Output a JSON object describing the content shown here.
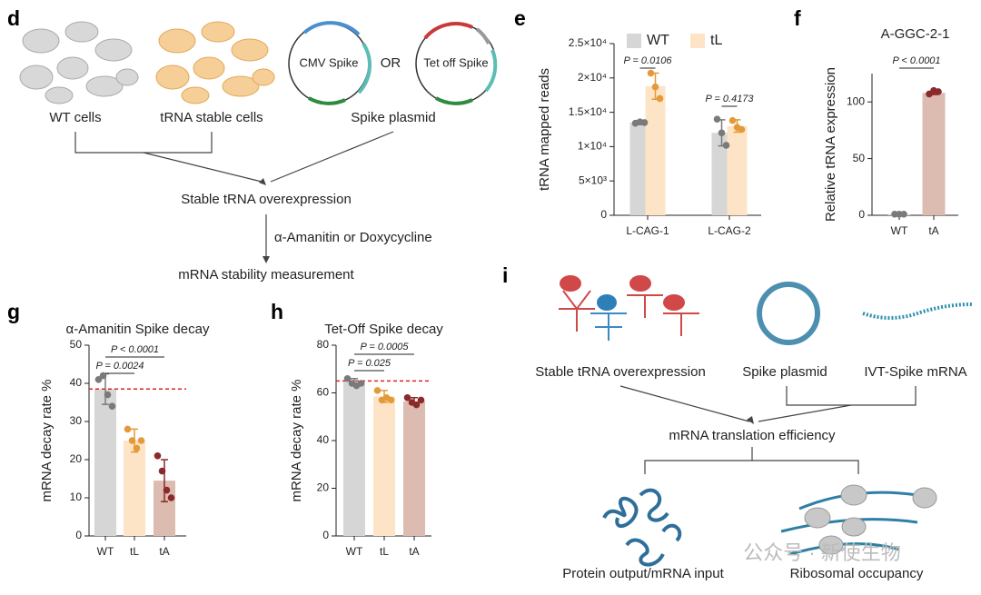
{
  "panel_letters": [
    "d",
    "e",
    "f",
    "g",
    "h",
    "i"
  ],
  "diagram_d": {
    "wt_cells": "WT cells",
    "stable_cells": "tRNA stable cells",
    "plasmid_1": "CMV Spike",
    "or": "OR",
    "plasmid_2": "Tet off Spike",
    "plasmid_label": "Spike plasmid",
    "step_1": "Stable tRNA overexpression",
    "treatment": "α-Amanitin or Doxycycline",
    "step_2": "mRNA stability measurement"
  },
  "diagram_i": {
    "trna": "Stable tRNA overexpression",
    "plasmid": "Spike plasmid",
    "ivt": "IVT-Spike mRNA",
    "measure": "mRNA translation efficiency",
    "protein": "Protein output/mRNA input",
    "ribosome": "Ribosomal occupancy"
  },
  "watermark": "公众号 · 新使生物",
  "chart_data": [
    {
      "type": "bar",
      "ylabel": "tRNA mapped reads",
      "categories": [
        "L-CAG-1",
        "L-CAG-2"
      ],
      "series": [
        {
          "name": "WT",
          "color": "#d6d6d6",
          "point_color": "#7a7a7a",
          "values": [
            13500,
            12000
          ],
          "errors": [
            300,
            1900
          ],
          "points": [
            [
              13400,
              13600,
              13500
            ],
            [
              14000,
              12000,
              10200
            ]
          ]
        },
        {
          "name": "tL",
          "color": "#fde4c6",
          "point_color": "#e59a3a",
          "values": [
            18800,
            13000
          ],
          "errors": [
            1900,
            900
          ],
          "points": [
            [
              20700,
              18700,
              17000
            ],
            [
              13800,
              12800,
              12500
            ]
          ]
        }
      ],
      "ylim": [
        0,
        25000
      ],
      "yticks": [
        0,
        {
          "value": 5000,
          "label": "5×10³"
        },
        {
          "value": 10000,
          "label": "1×10⁴"
        },
        {
          "value": 15000,
          "label": "1.5×10⁴"
        },
        {
          "value": 20000,
          "label": "2×10⁴"
        },
        {
          "value": 25000,
          "label": "2.5×10⁴"
        }
      ],
      "legend": "top",
      "annotations": [
        {
          "text": "P = 0.0106",
          "category": "L-CAG-1",
          "between": [
            "WT",
            "tL"
          ]
        },
        {
          "text": "P = 0.4173",
          "category": "L-CAG-2",
          "between": [
            "WT",
            "tL"
          ]
        }
      ]
    },
    {
      "type": "bar",
      "title": "A-GGC-2-1",
      "ylabel": "Relative tRNA expression",
      "categories": [
        "WT",
        "tA"
      ],
      "values": [
        1,
        108
      ],
      "errors": [
        0.5,
        1.5
      ],
      "colors": [
        "#d6d6d6",
        "#dcbcb0"
      ],
      "point_colors": [
        "#7a7a7a",
        "#8b2a2a"
      ],
      "points": [
        [
          1,
          1,
          1
        ],
        [
          107,
          110,
          109
        ]
      ],
      "ylim": [
        0,
        125
      ],
      "yticks": [
        0,
        50,
        100
      ],
      "annotations": [
        {
          "text": "P < 0.0001",
          "between": [
            "WT",
            "tA"
          ]
        }
      ]
    },
    {
      "type": "bar",
      "title": "α-Amanitin Spike decay",
      "ylabel": "mRNA decay rate %",
      "categories": [
        "WT",
        "tL",
        "tA"
      ],
      "values": [
        38.5,
        25,
        14.5
      ],
      "errors": [
        4,
        3,
        5.5
      ],
      "colors": [
        "#d6d6d6",
        "#fde4c6",
        "#dcbcb0"
      ],
      "point_colors": [
        "#7a7a7a",
        "#e59a3a",
        "#8b2a2a"
      ],
      "points": [
        [
          41,
          42,
          37,
          34
        ],
        [
          28,
          25,
          23,
          25
        ],
        [
          21,
          17,
          12,
          10
        ]
      ],
      "ylim": [
        0,
        50
      ],
      "yticks": [
        0,
        10,
        20,
        30,
        40,
        50
      ],
      "ref_line": 38.5,
      "ref_color": "#e02020",
      "annotations": [
        {
          "text": "P < 0.0001",
          "between": [
            "WT",
            "tA"
          ]
        },
        {
          "text": "P = 0.0024",
          "between": [
            "WT",
            "tL"
          ]
        }
      ]
    },
    {
      "type": "bar",
      "title": "Tet-Off Spike decay",
      "ylabel": "mRNA decay rate %",
      "categories": [
        "WT",
        "tL",
        "tA"
      ],
      "values": [
        64.5,
        58.5,
        56.5
      ],
      "errors": [
        1.5,
        2.5,
        1.5
      ],
      "colors": [
        "#d6d6d6",
        "#fde4c6",
        "#dcbcb0"
      ],
      "point_colors": [
        "#7a7a7a",
        "#e59a3a",
        "#8b2a2a"
      ],
      "points": [
        [
          66,
          64,
          63,
          64
        ],
        [
          61,
          57,
          58,
          57
        ],
        [
          58,
          56,
          55,
          57
        ]
      ],
      "ylim": [
        0,
        80
      ],
      "yticks": [
        0,
        20,
        40,
        60,
        80
      ],
      "ref_line": 65,
      "ref_color": "#e02020",
      "annotations": [
        {
          "text": "P = 0.0005",
          "between": [
            "WT",
            "tA"
          ]
        },
        {
          "text": "P = 0.025",
          "between": [
            "WT",
            "tL"
          ]
        }
      ]
    }
  ]
}
